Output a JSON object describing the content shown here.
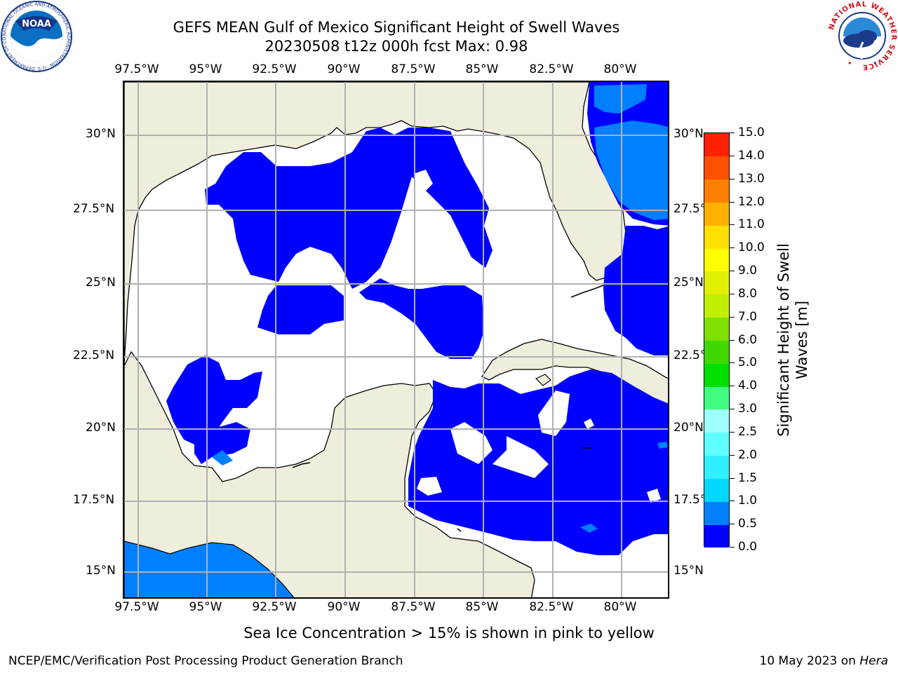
{
  "title": {
    "line1": "GEFS MEAN Gulf of Mexico Significant Height of Swell Waves",
    "line2": "20230508 t12z 000h fcst   Max: 0.98"
  },
  "map": {
    "lon_ticks": [
      "97.5°W",
      "95°W",
      "92.5°W",
      "90°W",
      "87.5°W",
      "85°W",
      "82.5°W",
      "80°W"
    ],
    "lat_ticks": [
      "30°N",
      "27.5°N",
      "25°N",
      "22.5°N",
      "20°N",
      "17.5°N",
      "15°N"
    ],
    "land_color": "#efeedc",
    "ocean_color": "#ffffff",
    "grid_color": "#b0b0b0"
  },
  "colorbar": {
    "label": "Significant Height of Swell Waves [m]",
    "tick_labels": [
      "0.0",
      "0.5",
      "1.0",
      "1.5",
      "2.0",
      "2.5",
      "3.0",
      "4.0",
      "5.0",
      "6.0",
      "7.0",
      "8.0",
      "9.0",
      "10.0",
      "11.0",
      "12.0",
      "13.0",
      "14.0",
      "15.0"
    ],
    "colors": [
      "#0000ff",
      "#0080ff",
      "#00d8ff",
      "#30f0ff",
      "#60ffff",
      "#a0ffff",
      "#40ff80",
      "#00e000",
      "#40d800",
      "#80e000",
      "#c0f000",
      "#e0f000",
      "#ffff00",
      "#ffe000",
      "#ffb000",
      "#ff8000",
      "#ff5000",
      "#ff2000"
    ]
  },
  "note": "Sea Ice Concentration > 15% is shown in pink to yellow",
  "footer": {
    "left": "NCEP/EMC/Verification Post Processing Product Generation Branch",
    "date": "10 May 2023 on ",
    "machine": "Hera"
  },
  "logos": {
    "noaa_text": "NOAA",
    "noaa_ring": "NATIONAL OCEANIC AND ATMOSPHERIC ADMINISTRATION · U.S. DEPARTMENT OF COMMERCE",
    "nws_ring": "NATIONAL WEATHER SERVICE"
  }
}
